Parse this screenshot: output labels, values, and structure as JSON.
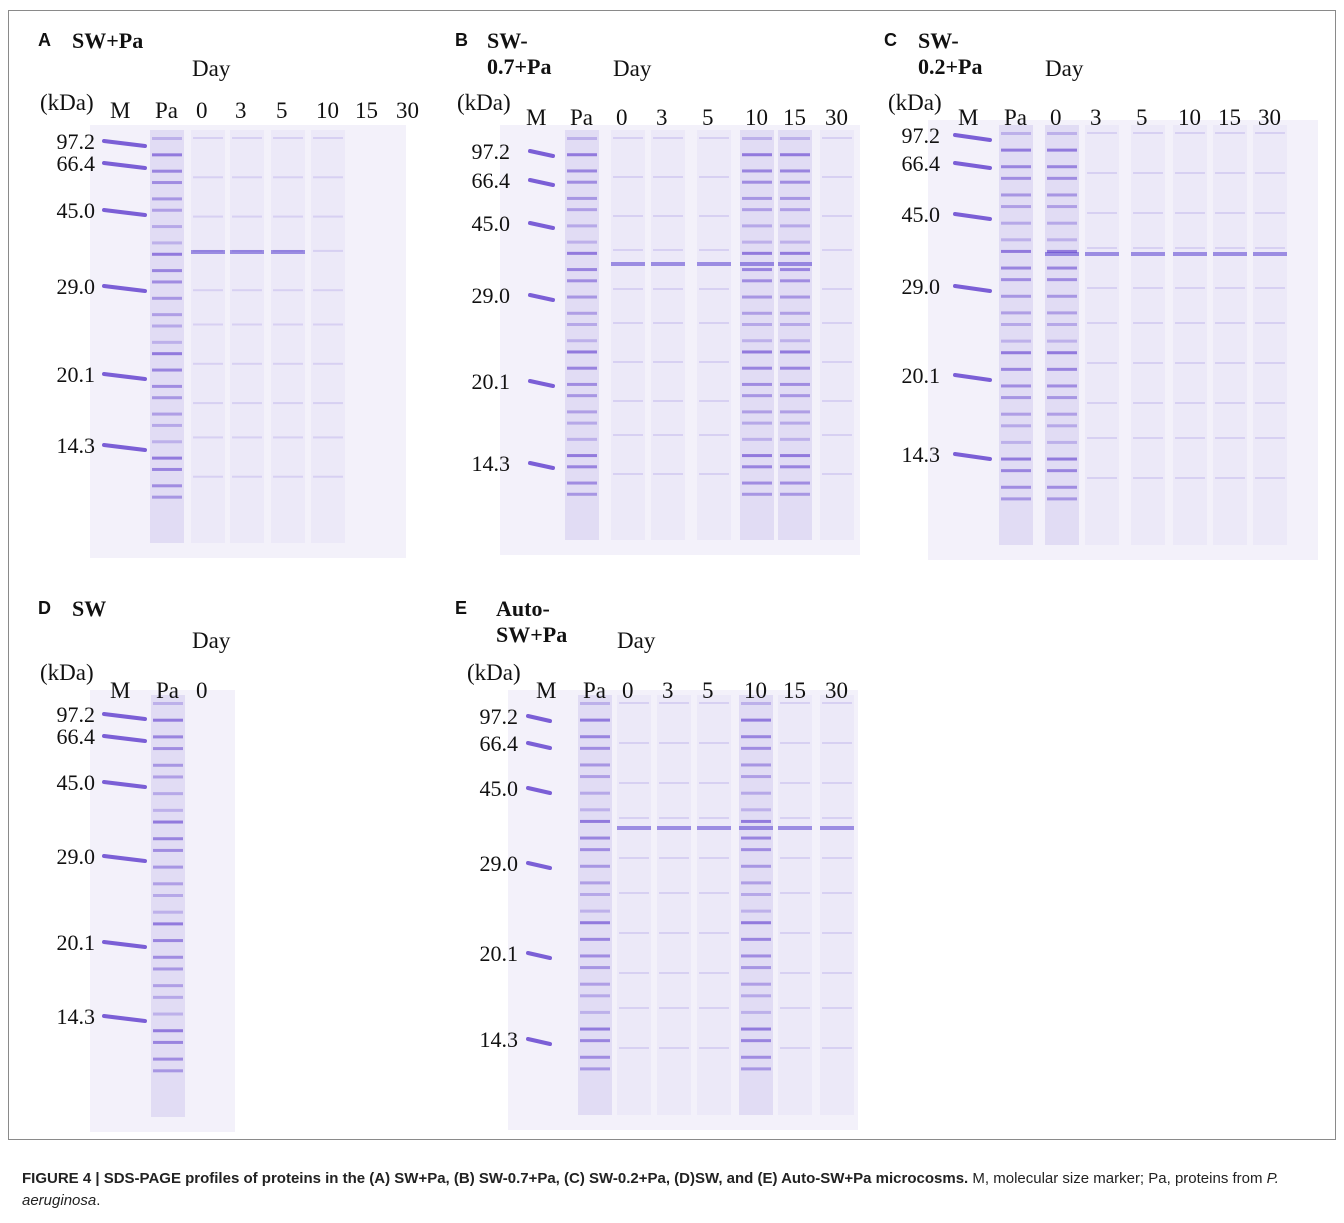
{
  "figure": {
    "caption": {
      "bold": "FIGURE 4 | SDS-PAGE profiles of proteins in the (A) SW+Pa, (B) SW-0.7+Pa, (C) SW-0.2+Pa, (D)SW, and (E) Auto-SW+Pa microcosms.",
      "rest_before_italic": " M, molecular size marker; Pa, proteins from ",
      "italic": "P. aeruginosa",
      "end": "."
    },
    "panels": [
      {
        "id": "A",
        "letter": "A",
        "title": "SW+Pa",
        "day_label": "Day",
        "kda_label": "(kDa)",
        "lanes": [
          "M",
          "Pa",
          "0",
          "3",
          "5",
          "10",
          "15",
          "30"
        ],
        "markers": [
          "97.2",
          "66.4",
          "45.0",
          "29.0",
          "20.1",
          "14.3"
        ]
      },
      {
        "id": "B",
        "letter": "B",
        "title": "SW-0.7+Pa",
        "day_label": "Day",
        "kda_label": "(kDa)",
        "lanes": [
          "M",
          "Pa",
          "0",
          "3",
          "5",
          "10",
          "15",
          "30"
        ],
        "markers": [
          "97.2",
          "66.4",
          "45.0",
          "29.0",
          "20.1",
          "14.3"
        ]
      },
      {
        "id": "C",
        "letter": "C",
        "title": "SW-0.2+Pa",
        "day_label": "Day",
        "kda_label": "(kDa)",
        "lanes": [
          "M",
          "Pa",
          "0",
          "3",
          "5",
          "10",
          "15",
          "30"
        ],
        "markers": [
          "97.2",
          "66.4",
          "45.0",
          "29.0",
          "20.1",
          "14.3"
        ]
      },
      {
        "id": "D",
        "letter": "D",
        "title": "SW",
        "day_label": "Day",
        "kda_label": "(kDa)",
        "lanes": [
          "M",
          "Pa",
          "0"
        ],
        "markers": [
          "97.2",
          "66.4",
          "45.0",
          "29.0",
          "20.1",
          "14.3"
        ]
      },
      {
        "id": "E",
        "letter": "E",
        "title": "Auto-SW+Pa",
        "day_label": "Day",
        "kda_label": "(kDa)",
        "lanes": [
          "M",
          "Pa",
          "0",
          "3",
          "5",
          "10",
          "15",
          "30"
        ],
        "markers": [
          "97.2",
          "66.4",
          "45.0",
          "29.0",
          "20.1",
          "14.3"
        ]
      }
    ],
    "colors": {
      "band": "#7b5fd6",
      "band_dark": "#5a3fcf",
      "gel": "#f3f1fa"
    }
  }
}
